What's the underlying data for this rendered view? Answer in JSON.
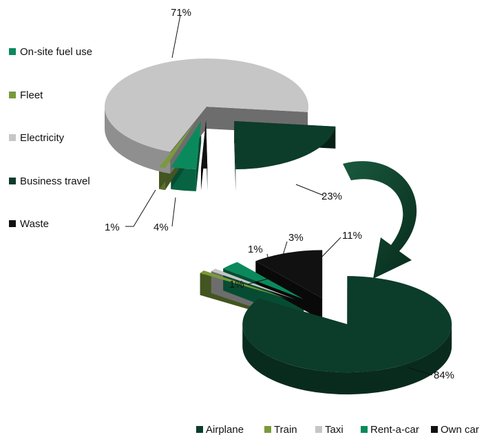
{
  "chart_data": [
    {
      "type": "pie",
      "style": "3d-exploded",
      "legend_position": "left",
      "categories": [
        "On-site fuel use",
        "Fleet",
        "Electricity",
        "Business travel",
        "Waste"
      ],
      "values": [
        4,
        1,
        71,
        23,
        1
      ],
      "value_labels": [
        "4%",
        "1%",
        "71%",
        "23%",
        ""
      ],
      "colors": [
        "#0a8a5c",
        "#7a9a3a",
        "#c6c6c6",
        "#0c3c2a",
        "#111111"
      ]
    },
    {
      "type": "pie",
      "style": "3d-exploded",
      "legend_position": "bottom",
      "categories": [
        "Airplane",
        "Train",
        "Taxi",
        "Rent-a-car",
        "Own car"
      ],
      "values": [
        84,
        1,
        1,
        3,
        11
      ],
      "value_labels": [
        "84%",
        "1%",
        "1%",
        "3%",
        "11%"
      ],
      "colors": [
        "#0c3c2a",
        "#7a9a3a",
        "#c6c6c6",
        "#0a8a5c",
        "#111111"
      ]
    }
  ]
}
